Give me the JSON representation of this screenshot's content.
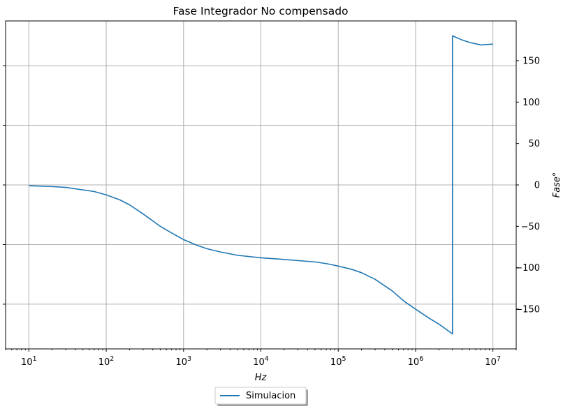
{
  "chart_data": {
    "type": "line",
    "title": "Fase Integrador No compensado",
    "xlabel": "Hz",
    "ylabel": "Fase°",
    "xscale": "log",
    "xlim": [
      5,
      20000000
    ],
    "ylim": [
      -198,
      198
    ],
    "y_axis_side": "right",
    "x_ticks": [
      {
        "value": 10,
        "base": "10",
        "exp": "1"
      },
      {
        "value": 100,
        "base": "10",
        "exp": "2"
      },
      {
        "value": 1000,
        "base": "10",
        "exp": "3"
      },
      {
        "value": 10000,
        "base": "10",
        "exp": "4"
      },
      {
        "value": 100000,
        "base": "10",
        "exp": "5"
      },
      {
        "value": 1000000,
        "base": "10",
        "exp": "6"
      },
      {
        "value": 10000000,
        "base": "10",
        "exp": "7"
      }
    ],
    "y_ticks": [
      {
        "value": 150,
        "label": "150"
      },
      {
        "value": 100,
        "label": "100"
      },
      {
        "value": 50,
        "label": "50"
      },
      {
        "value": 0,
        "label": "0"
      },
      {
        "value": -50,
        "label": "−50"
      },
      {
        "value": -100,
        "label": "−100"
      },
      {
        "value": -150,
        "label": "−150"
      }
    ],
    "left_ticks_values": [
      144,
      72,
      0,
      -72,
      -144
    ],
    "grid": true,
    "legend_position": "bottom-center",
    "series": [
      {
        "name": "Simulacion",
        "color": "#1f77b4",
        "x": [
          10,
          20,
          30,
          50,
          70,
          100,
          150,
          200,
          300,
          500,
          700,
          1000,
          1500,
          2000,
          3000,
          5000,
          10000,
          20000,
          50000,
          70000,
          100000,
          150000,
          200000,
          300000,
          500000,
          700000,
          1000000,
          1500000,
          2000000,
          3000000,
          3000001,
          4000000,
          5000000,
          7000000,
          10000000
        ],
        "y": [
          -1,
          -2,
          -3,
          -6,
          -8,
          -12,
          -18,
          -24,
          -35,
          -50,
          -58,
          -66,
          -73,
          -77,
          -81,
          -85,
          -88,
          -90,
          -93,
          -95,
          -98,
          -102,
          -106,
          -114,
          -128,
          -140,
          -150,
          -161,
          -168,
          -180,
          180,
          175,
          172,
          169,
          170
        ]
      }
    ]
  }
}
